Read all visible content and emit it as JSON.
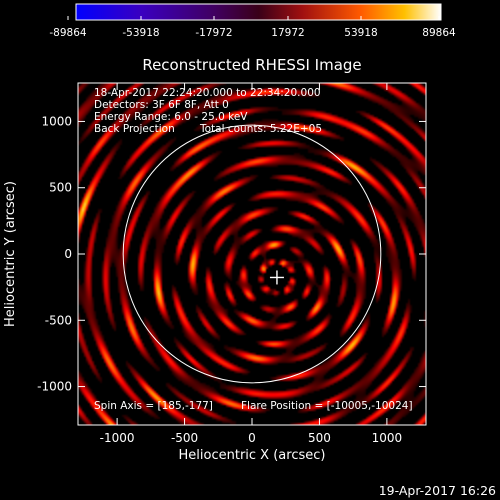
{
  "chart_data": {
    "type": "heatmap",
    "title": "Reconstructed RHESSI Image",
    "xlabel": "Heliocentric X (arcsec)",
    "ylabel": "Heliocentric Y (arcsec)",
    "xlim": [
      -1290,
      1290
    ],
    "ylim": [
      -1290,
      1290
    ],
    "x_ticks": [
      -1000,
      -500,
      0,
      500,
      1000
    ],
    "y_ticks": [
      -1000,
      -500,
      0,
      500,
      1000
    ],
    "colorbar": {
      "colormap": "rhessi-hot",
      "range": [
        -89864,
        89864
      ],
      "tick_labels": [
        "-89864",
        "-53918",
        "-17972",
        "17972",
        "53918",
        "89864"
      ]
    },
    "annotations": {
      "time_range": "18-Apr-2017 22:24:20.000 to 22:34:20.000",
      "detectors": "Detectors: 3F 6F 8F, Att 0",
      "energy_range": "Energy Range: 6.0 - 25.0 keV",
      "method": "Back Projection",
      "total_counts": "Total counts: 5.22E+05",
      "spin_axis": "Spin Axis = [185,-177]",
      "flare_position": "Flare Position = [-10005,-10024]"
    },
    "solar_disk": {
      "center": [
        0,
        0
      ],
      "radius_arcsec": 955
    },
    "spin_axis_marker": [
      185,
      -177
    ],
    "footer_timestamp": "19-Apr-2017 16:26"
  }
}
